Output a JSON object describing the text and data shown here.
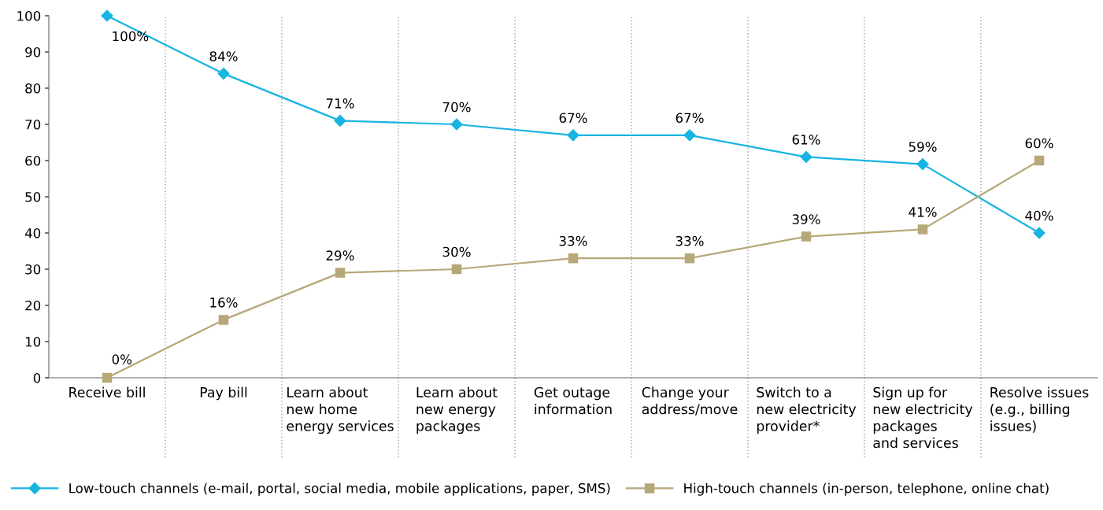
{
  "chart_data": {
    "type": "line",
    "categories": [
      "Receive bill",
      "Pay bill",
      "Learn about\nnew home\nenergy services",
      "Learn about\nnew energy\npackages",
      "Get outage\ninformation",
      "Change your\naddress/move",
      "Switch to a\nnew electricity\nprovider*",
      "Sign up for\nnew electricity\npackages\nand services",
      "Resolve issues\n(e.g., billing\nissues)"
    ],
    "series": [
      {
        "name": "Low-touch channels (e-mail, portal, social media, mobile applications, paper, SMS)",
        "color": "#17b4e2",
        "marker": "diamond",
        "values": [
          100,
          84,
          71,
          70,
          67,
          67,
          61,
          59,
          40
        ],
        "value_labels": [
          "100%",
          "84%",
          "71%",
          "70%",
          "67%",
          "67%",
          "61%",
          "59%",
          "40%"
        ]
      },
      {
        "name": "High-touch channels (in-person, telephone, online chat)",
        "color": "#b6a878",
        "marker": "square",
        "values": [
          0,
          16,
          29,
          30,
          33,
          33,
          39,
          41,
          60
        ],
        "value_labels": [
          "0%",
          "16%",
          "29%",
          "30%",
          "33%",
          "33%",
          "39%",
          "41%",
          "60%"
        ]
      }
    ],
    "ylim": [
      0,
      100
    ],
    "yticks": [
      0,
      10,
      20,
      30,
      40,
      50,
      60,
      70,
      80,
      90,
      100
    ],
    "grid": "x",
    "legend": "bottom left",
    "line_style": "solid"
  }
}
